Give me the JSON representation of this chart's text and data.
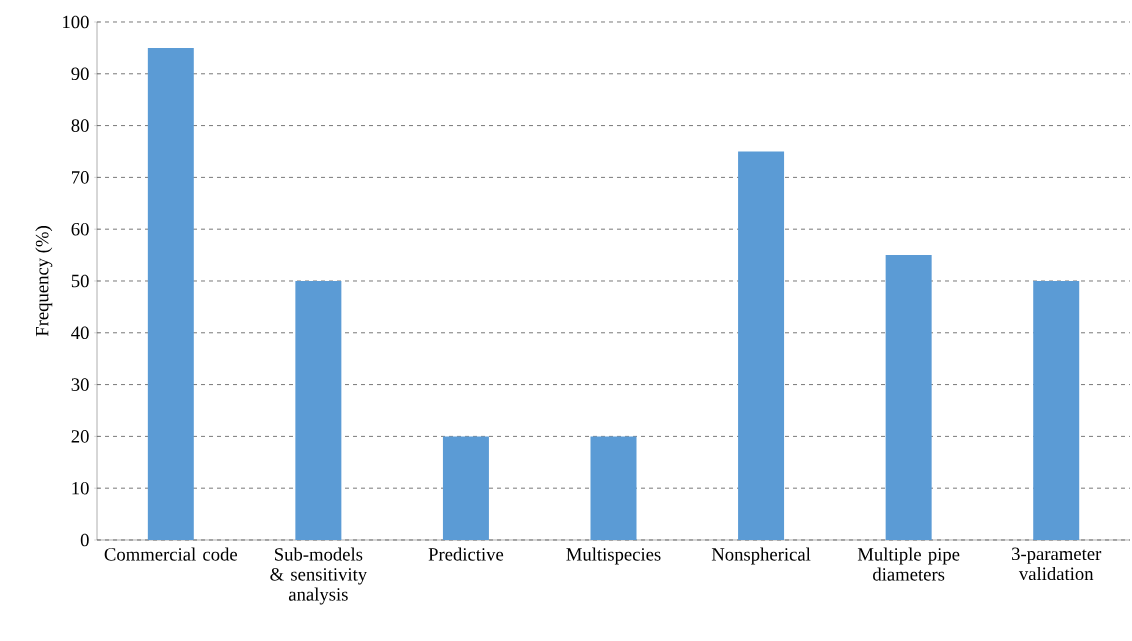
{
  "chart_data": {
    "type": "bar",
    "ylabel": "Frequency (%)",
    "categories": [
      "Commercial code",
      "Sub-models & sensitivity analysis",
      "Predictive",
      "Multispecies",
      "Nonspherical",
      "Multiple pipe diameters",
      "3-parameter validation"
    ],
    "values": [
      95,
      50,
      20,
      20,
      75,
      55,
      50
    ],
    "color": "#5b9bd5",
    "ylim": [
      0,
      100
    ],
    "yticks": [
      0,
      10,
      20,
      30,
      40,
      50,
      60,
      70,
      80,
      90,
      100
    ],
    "grid": "y"
  }
}
